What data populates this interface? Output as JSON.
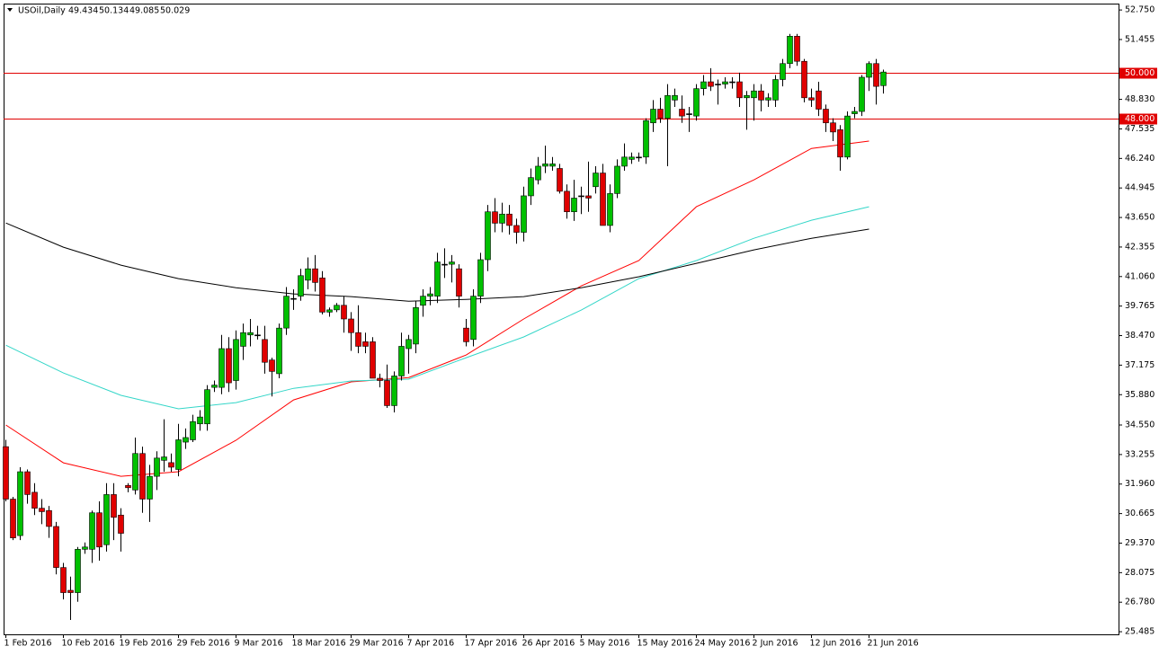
{
  "chart_data": {
    "type": "candlestick",
    "symbol": "USOil,Daily",
    "categories": [
      "1 Feb 2016",
      null,
      null,
      null,
      null,
      null,
      null,
      null,
      "10 Feb 2016",
      null,
      null,
      null,
      null,
      null,
      null,
      null,
      "19 Feb 2016",
      null,
      null,
      null,
      null,
      null,
      null,
      null,
      "29 Feb 2016",
      null,
      null,
      null,
      null,
      null,
      null,
      null,
      "9 Mar 2016",
      null,
      null,
      null,
      null,
      null,
      null,
      null,
      "18 Mar 2016",
      null,
      null,
      null,
      null,
      null,
      null,
      null,
      "29 Mar 2016",
      null,
      null,
      null,
      null,
      null,
      null,
      null,
      "7 Apr 2016",
      null,
      null,
      null,
      null,
      null,
      null,
      null,
      "17 Apr 2016",
      null,
      null,
      null,
      null,
      null,
      null,
      null,
      "26 Apr 2016",
      null,
      null,
      null,
      null,
      null,
      null,
      null,
      "5 May 2016",
      null,
      null,
      null,
      null,
      null,
      null,
      null,
      "15 May 2016",
      null,
      null,
      null,
      null,
      null,
      null,
      null,
      "24 May 2016",
      null,
      null,
      null,
      null,
      null,
      null,
      null,
      "2 Jun 2016",
      null,
      null,
      null,
      null,
      null,
      null,
      null,
      "12 Jun 2016",
      null,
      null,
      null,
      null,
      null,
      null,
      null,
      "21 Jun 2016",
      null,
      null
    ],
    "open": [
      33.6,
      31.3,
      29.7,
      32.5,
      31.6,
      30.9,
      30.8,
      30.1,
      28.3,
      27.3,
      27.2,
      29.1,
      29.1,
      30.7,
      29.3,
      31.5,
      30.6,
      31.9,
      31.7,
      33.3,
      31.3,
      32.3,
      33.0,
      32.9,
      32.6,
      33.8,
      33.9,
      34.6,
      34.6,
      36.2,
      36.2,
      37.9,
      36.5,
      38.0,
      38.5,
      38.5,
      38.3,
      37.4,
      36.8,
      38.8,
      40.1,
      40.2,
      40.9,
      41.4,
      41.0,
      39.5,
      39.6,
      39.8,
      39.2,
      38.6,
      38.2,
      38.2,
      36.6,
      36.5,
      35.4,
      36.7,
      37.9,
      38.1,
      39.8,
      40.2,
      40.2,
      41.6,
      41.6,
      41.4,
      38.8,
      38.3,
      40.2,
      41.8,
      43.9,
      43.4,
      43.8,
      43.3,
      43.0,
      44.6,
      45.3,
      45.9,
      45.9,
      45.8,
      44.8,
      43.9,
      44.6,
      44.6,
      45.0,
      45.6,
      43.3,
      44.7,
      45.9,
      46.2,
      46.3,
      46.3,
      47.8,
      48.4,
      48.0,
      48.8,
      48.4,
      48.2,
      48.1,
      49.3,
      49.6,
      49.5,
      49.5,
      49.6,
      49.6,
      48.9,
      48.9,
      49.2,
      48.8,
      48.8,
      49.7,
      50.4,
      51.6,
      50.5,
      48.9,
      49.2,
      48.4,
      47.8,
      47.5,
      46.3,
      48.2,
      48.3,
      49.8,
      50.4,
      49.434
    ],
    "high": [
      33.9,
      31.4,
      32.7,
      32.6,
      32.0,
      31.3,
      31.0,
      30.3,
      28.5,
      27.9,
      29.2,
      29.4,
      30.8,
      31.2,
      32.0,
      32.0,
      30.9,
      32.0,
      34.0,
      33.6,
      32.8,
      33.4,
      34.8,
      33.3,
      34.6,
      34.4,
      35.0,
      35.2,
      36.3,
      36.5,
      38.5,
      38.4,
      38.7,
      39.0,
      39.2,
      38.9,
      38.9,
      37.5,
      39.0,
      40.6,
      40.5,
      41.4,
      41.9,
      42.0,
      41.3,
      39.7,
      39.9,
      40.2,
      39.5,
      39.8,
      38.6,
      38.4,
      36.8,
      37.2,
      36.9,
      38.6,
      38.5,
      40.0,
      40.5,
      40.6,
      42.1,
      42.3,
      42.0,
      41.6,
      39.2,
      40.5,
      42.1,
      44.2,
      44.5,
      44.3,
      44.2,
      43.6,
      45.0,
      45.8,
      46.3,
      46.8,
      46.3,
      46.0,
      45.1,
      45.3,
      45.0,
      46.1,
      45.9,
      46.0,
      45.1,
      46.2,
      46.9,
      46.5,
      46.5,
      48.0,
      48.8,
      48.9,
      49.5,
      49.3,
      49.0,
      48.5,
      49.5,
      49.9,
      50.2,
      49.7,
      49.8,
      49.8,
      50.0,
      49.2,
      49.5,
      49.5,
      49.1,
      49.9,
      50.6,
      51.7,
      51.7,
      50.6,
      49.3,
      49.6,
      48.6,
      48.0,
      47.7,
      48.3,
      48.5,
      49.9,
      50.5,
      50.6,
      50.134
    ],
    "low": [
      31.2,
      29.5,
      29.5,
      31.1,
      30.6,
      30.2,
      29.6,
      28.0,
      26.9,
      26.0,
      26.8,
      28.9,
      28.5,
      28.6,
      29.0,
      29.5,
      29.0,
      31.6,
      31.5,
      30.7,
      30.3,
      31.7,
      32.5,
      32.5,
      32.3,
      33.5,
      33.8,
      34.3,
      34.3,
      36.0,
      35.9,
      36.0,
      36.1,
      37.4,
      38.0,
      38.3,
      36.8,
      35.8,
      36.6,
      38.5,
      39.6,
      40.0,
      40.5,
      40.4,
      39.4,
      39.3,
      39.5,
      38.6,
      37.8,
      37.7,
      37.7,
      36.6,
      36.2,
      35.3,
      35.1,
      36.5,
      36.8,
      37.7,
      39.3,
      39.8,
      39.9,
      41.0,
      40.8,
      39.7,
      38.0,
      38.0,
      39.9,
      41.3,
      43.0,
      43.0,
      42.9,
      42.5,
      42.6,
      44.2,
      45.1,
      45.6,
      45.7,
      44.7,
      43.6,
      43.5,
      43.8,
      43.9,
      44.7,
      43.3,
      43.0,
      44.5,
      45.7,
      46.0,
      46.1,
      46.0,
      47.4,
      47.8,
      45.9,
      48.5,
      47.8,
      47.4,
      47.9,
      49.0,
      49.2,
      48.6,
      49.3,
      49.3,
      48.5,
      47.5,
      47.9,
      48.3,
      48.5,
      48.5,
      49.4,
      50.2,
      50.3,
      48.7,
      48.5,
      48.1,
      47.4,
      47.0,
      45.7,
      46.2,
      48.0,
      48.1,
      49.2,
      48.6,
      49.085
    ],
    "close": [
      31.3,
      29.6,
      32.5,
      31.5,
      30.9,
      30.75,
      30.1,
      28.3,
      27.2,
      27.2,
      29.1,
      29.2,
      30.7,
      29.2,
      31.5,
      30.5,
      29.8,
      31.8,
      33.3,
      31.3,
      32.3,
      33.1,
      33.15,
      32.7,
      33.9,
      34.0,
      34.7,
      34.9,
      36.1,
      36.3,
      37.9,
      36.4,
      38.3,
      38.6,
      38.6,
      38.5,
      37.3,
      36.9,
      38.8,
      40.2,
      40.1,
      41.1,
      41.4,
      40.8,
      39.5,
      39.6,
      39.8,
      39.2,
      38.6,
      38.0,
      38.0,
      36.6,
      36.5,
      35.4,
      36.7,
      38.0,
      38.3,
      39.7,
      40.2,
      40.3,
      41.7,
      41.6,
      41.7,
      40.2,
      38.2,
      40.2,
      41.8,
      43.9,
      43.4,
      43.8,
      43.3,
      43.0,
      44.6,
      45.4,
      45.9,
      46.0,
      46.0,
      44.8,
      43.9,
      44.5,
      44.6,
      44.5,
      45.6,
      43.3,
      44.7,
      45.9,
      46.3,
      46.3,
      46.3,
      47.9,
      48.4,
      48.0,
      49.0,
      49.0,
      48.1,
      48.2,
      49.3,
      49.6,
      49.4,
      49.5,
      49.6,
      49.6,
      48.9,
      49.0,
      49.2,
      48.8,
      48.9,
      49.7,
      50.4,
      51.6,
      50.5,
      48.9,
      48.8,
      48.4,
      47.8,
      47.4,
      46.3,
      48.1,
      48.3,
      49.8,
      50.4,
      49.4,
      50.029
    ],
    "up_color": "#00c000",
    "down_color": "#e00000",
    "moving_averages": [
      {
        "color": "#ff0000",
        "x": [
          "1 Feb 2016",
          "10 Feb 2016",
          "19 Feb 2016",
          "29 Feb 2016",
          "9 Mar 2016",
          "18 Mar 2016",
          "29 Mar 2016",
          "7 Apr 2016",
          "17 Apr 2016",
          "26 Apr 2016",
          "5 May 2016",
          "15 May 2016",
          "24 May 2016",
          "2 Jun 2016",
          "12 Jun 2016",
          "21 Jun 2016"
        ],
        "values": [
          34.55,
          32.89,
          32.3,
          32.5,
          33.88,
          35.65,
          36.44,
          36.63,
          37.62,
          39.2,
          40.65,
          41.76,
          44.12,
          45.3,
          46.68,
          47.0
        ]
      },
      {
        "color": "#33d6c8",
        "x": [
          "1 Feb 2016",
          "10 Feb 2016",
          "19 Feb 2016",
          "29 Feb 2016",
          "9 Mar 2016",
          "18 Mar 2016",
          "29 Mar 2016",
          "7 Apr 2016",
          "17 Apr 2016",
          "26 Apr 2016",
          "5 May 2016",
          "15 May 2016",
          "24 May 2016",
          "2 Jun 2016",
          "12 Jun 2016",
          "21 Jun 2016"
        ],
        "values": [
          38.05,
          36.83,
          35.85,
          35.26,
          35.53,
          36.16,
          36.48,
          36.56,
          37.5,
          38.41,
          39.59,
          40.97,
          41.76,
          42.74,
          43.53,
          44.12
        ]
      },
      {
        "color": "#000000",
        "x": [
          "1 Feb 2016",
          "10 Feb 2016",
          "19 Feb 2016",
          "29 Feb 2016",
          "9 Mar 2016",
          "18 Mar 2016",
          "29 Mar 2016",
          "7 Apr 2016",
          "17 Apr 2016",
          "26 Apr 2016",
          "5 May 2016",
          "15 May 2016",
          "24 May 2016",
          "2 Jun 2016",
          "12 Jun 2016",
          "21 Jun 2016"
        ],
        "values": [
          43.41,
          42.35,
          41.56,
          40.97,
          40.57,
          40.3,
          40.18,
          39.98,
          40.06,
          40.18,
          40.57,
          41.05,
          41.64,
          42.23,
          42.74,
          43.14
        ]
      }
    ],
    "hlines": [
      {
        "value": 50,
        "label": "50.000"
      },
      {
        "value": 48,
        "label": "48.000"
      }
    ],
    "hline_color": "#e00000",
    "ylim": [
      25.37,
      53.03
    ],
    "yticks": [
      {
        "value": 52.75,
        "label": "52.750"
      },
      {
        "value": 51.455,
        "label": "51.455"
      },
      {
        "value": 48.83,
        "label": "48.830"
      },
      {
        "value": 47.535,
        "label": "47.535"
      },
      {
        "value": 46.24,
        "label": "46.240"
      },
      {
        "value": 44.945,
        "label": "44.945"
      },
      {
        "value": 43.65,
        "label": "43.650"
      },
      {
        "value": 42.355,
        "label": "42.355"
      },
      {
        "value": 41.06,
        "label": "41.060"
      },
      {
        "value": 39.765,
        "label": "39.765"
      },
      {
        "value": 38.47,
        "label": "38.470"
      },
      {
        "value": 37.175,
        "label": "37.175"
      },
      {
        "value": 35.88,
        "label": "35.880"
      },
      {
        "value": 34.55,
        "label": "34.550"
      },
      {
        "value": 33.255,
        "label": "33.255"
      },
      {
        "value": 31.96,
        "label": "31.960"
      },
      {
        "value": 30.665,
        "label": "30.665"
      },
      {
        "value": 29.37,
        "label": "29.370"
      },
      {
        "value": 28.075,
        "label": "28.075"
      },
      {
        "value": 26.78,
        "label": "26.780"
      },
      {
        "value": 25.485,
        "label": "25.485"
      }
    ],
    "grid": false
  }
}
